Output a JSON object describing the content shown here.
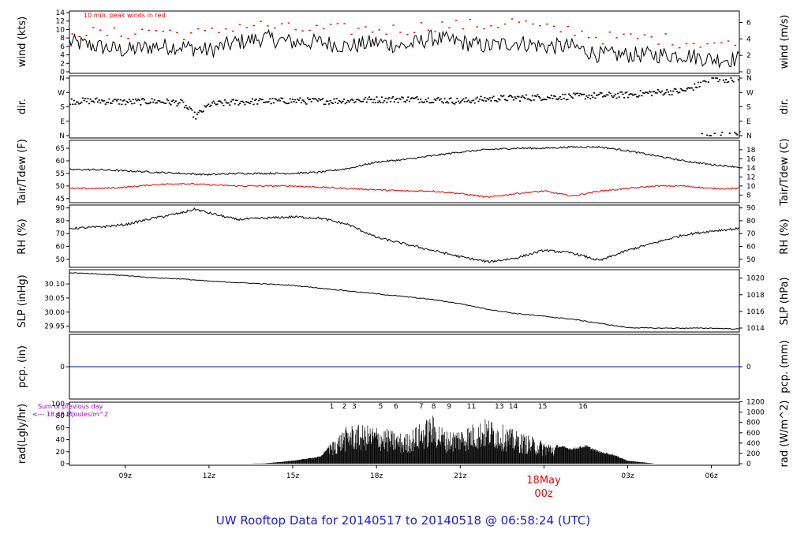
{
  "chart_data": {
    "title": "UW Rooftop Data for 20140517  to  20140518 @ 06:58:24  (UTC)",
    "title_color": "#1a1ae6",
    "accent_red": "#ee0000",
    "annot_purple": "#9900cc",
    "x_axis": {
      "ticks": [
        {
          "t": 9,
          "label": "09z"
        },
        {
          "t": 12,
          "label": "12z"
        },
        {
          "t": 15,
          "label": "15z"
        },
        {
          "t": 18,
          "label": "18z"
        },
        {
          "t": 21,
          "label": "21z"
        },
        {
          "t": 27,
          "label": "03z"
        },
        {
          "t": 30,
          "label": "06z"
        }
      ],
      "range_hours": [
        7.0,
        31.0
      ],
      "day_marker": {
        "t": 24,
        "date": "18May",
        "time": "00z"
      }
    },
    "panels": [
      {
        "id": "wind",
        "type": "line",
        "ylabel_left": "wind (kts)",
        "ylabel_right": "wind (m/s)",
        "note": "10 min. peak winds in red",
        "ylim": [
          0,
          14
        ],
        "left_ticks": [
          "0",
          "2",
          "4",
          "6",
          "8",
          "10",
          "12",
          "14"
        ],
        "right_ticks": [
          {
            "v": 0,
            "label": "0"
          },
          {
            "v": 2,
            "label": "2"
          },
          {
            "v": 4,
            "label": "4"
          },
          {
            "v": 6,
            "label": "6"
          }
        ],
        "right_factor": 0.5144,
        "series": [
          {
            "name": "wind",
            "color": "#000000",
            "x": [
              7,
              8,
              9,
              10,
              11,
              12,
              13,
              14,
              15,
              16,
              17,
              18,
              19,
              20,
              21,
              22,
              23,
              24,
              25,
              26,
              27,
              28,
              29,
              30,
              31
            ],
            "y": [
              7,
              6,
              5,
              6,
              6,
              5,
              7,
              8,
              7,
              7,
              6,
              7,
              6,
              8,
              7,
              6,
              7,
              6,
              6,
              4,
              4,
              4,
              4,
              3,
              3
            ]
          },
          {
            "name": "10 min. peak",
            "color": "#ee0000",
            "x": [
              7,
              8,
              9,
              10,
              11,
              12,
              13,
              14,
              15,
              16,
              17,
              18,
              19,
              20,
              21,
              22,
              23,
              24,
              25,
              26,
              27,
              28,
              29,
              30,
              31
            ],
            "y": [
              10,
              9,
              9,
              10,
              9,
              9,
              11,
              11,
              10,
              10,
              10,
              10,
              10,
              11,
              11,
              11,
              12,
              10,
              10,
              8,
              8,
              8,
              7,
              7,
              6
            ]
          }
        ]
      },
      {
        "id": "dir",
        "type": "scatter",
        "ylabel_left": "dir.",
        "ylabel_right": "dir.",
        "ylim": [
          0,
          360
        ],
        "ticks": [
          "N",
          "E",
          "S",
          "W",
          "N"
        ],
        "series": [
          {
            "name": "wind direction (deg)",
            "x": [
              7,
              8,
              9,
              10,
              11,
              11.5,
              12,
              13,
              14,
              15,
              16,
              17,
              18,
              19,
              20,
              21,
              22,
              23,
              24,
              25,
              26,
              27,
              28,
              29,
              30,
              31
            ],
            "y": [
              215,
              218,
              210,
              215,
              205,
              120,
              195,
              210,
              215,
              218,
              215,
              220,
              225,
              228,
              225,
              215,
              230,
              235,
              240,
              245,
              250,
              255,
              270,
              280,
              350,
              355
            ]
          }
        ]
      },
      {
        "id": "temp",
        "type": "line",
        "ylabel_left": "Tair/Tdew (F)",
        "ylabel_right": "Tair/Tdew (C)",
        "ylim": [
          44,
          67.5
        ],
        "left_ticks": [
          "45",
          "50",
          "55",
          "60",
          "65"
        ],
        "right_ticks": [
          {
            "v": 8,
            "label": "8"
          },
          {
            "v": 10,
            "label": "10"
          },
          {
            "v": 12,
            "label": "12"
          },
          {
            "v": 14,
            "label": "14"
          },
          {
            "v": 16,
            "label": "16"
          },
          {
            "v": 18,
            "label": "18"
          }
        ],
        "series": [
          {
            "name": "Tair",
            "color": "#000000",
            "x": [
              7,
              8,
              9,
              10,
              11,
              12,
              13,
              14,
              15,
              16,
              17,
              18,
              19,
              20,
              21,
              22,
              23,
              24,
              25,
              26,
              27,
              28,
              29,
              30,
              31
            ],
            "y": [
              56.5,
              56.5,
              56,
              55.5,
              55,
              54.5,
              55,
              55,
              55,
              55.5,
              57,
              59.5,
              60.5,
              62,
              63.5,
              64.5,
              65,
              65,
              65.5,
              65.5,
              64,
              62,
              60,
              58.5,
              57.5
            ]
          },
          {
            "name": "Tdew",
            "color": "#ee0000",
            "x": [
              7,
              8,
              9,
              10,
              11,
              12,
              13,
              14,
              15,
              16,
              17,
              18,
              19,
              20,
              21,
              22,
              23,
              24,
              25,
              26,
              27,
              28,
              29,
              30,
              31
            ],
            "y": [
              49,
              49,
              49.5,
              50.5,
              51,
              50.5,
              50,
              50,
              50,
              49.5,
              49,
              48.5,
              48,
              48,
              47,
              45.5,
              47,
              48,
              46,
              48,
              49,
              50,
              50,
              49,
              49
            ]
          }
        ]
      },
      {
        "id": "rh",
        "type": "line",
        "ylabel_left": "RH (%)",
        "ylabel_right": "RH (%)",
        "ylim": [
          45,
          91
        ],
        "ticks": [
          "50",
          "60",
          "70",
          "80",
          "90"
        ],
        "series": [
          {
            "name": "RH",
            "color": "#000000",
            "x": [
              7,
              8,
              9,
              10,
              11,
              11.5,
              12,
              13,
              14,
              15,
              16,
              17,
              18,
              19,
              20,
              21,
              22,
              23,
              24,
              25,
              26,
              27,
              28,
              29,
              30,
              31
            ],
            "y": [
              74,
              75,
              77,
              82,
              86,
              89,
              86,
              81,
              82,
              83,
              82,
              77,
              67,
              62,
              57,
              52,
              48,
              51,
              57,
              55,
              49,
              57,
              63,
              69,
              72,
              74
            ]
          }
        ]
      },
      {
        "id": "slp",
        "type": "line",
        "ylabel_left": "SLP (inHg)",
        "ylabel_right": "SLP (hPa)",
        "ylim": [
          29.935,
          30.145
        ],
        "left_ticks": [
          "29.95",
          "30.00",
          "30.05",
          "30.10"
        ],
        "right_ticks": [
          {
            "v": 1014,
            "label": "1014"
          },
          {
            "v": 1016,
            "label": "1016"
          },
          {
            "v": 1018,
            "label": "1018"
          },
          {
            "v": 1020,
            "label": "1020"
          }
        ],
        "series": [
          {
            "name": "SLP",
            "color": "#000000",
            "x": [
              7,
              8,
              9,
              10,
              11,
              12,
              13,
              14,
              15,
              16,
              17,
              18,
              19,
              20,
              21,
              22,
              23,
              24,
              25,
              26,
              27,
              28,
              29,
              30,
              31
            ],
            "y": [
              30.14,
              30.135,
              30.13,
              30.122,
              30.118,
              30.11,
              30.105,
              30.1,
              30.095,
              30.085,
              30.075,
              30.065,
              30.055,
              30.045,
              30.03,
              30.01,
              29.995,
              29.985,
              29.975,
              29.96,
              29.945,
              29.943,
              29.943,
              29.943,
              29.94
            ]
          }
        ]
      },
      {
        "id": "pcp",
        "type": "line",
        "ylabel_left": "pcp. (in)",
        "ylabel_right": "pcp. (mm)",
        "ylim": [
          -1,
          1
        ],
        "left_ticks": [
          "0"
        ],
        "right_ticks": [
          {
            "v": 0,
            "label": "0"
          }
        ],
        "series": [
          {
            "name": "precip",
            "color": "#0000cc",
            "x": [
              7,
              31
            ],
            "y": [
              0,
              0
            ]
          }
        ]
      },
      {
        "id": "rad",
        "type": "area",
        "ylabel_left": "rad(Lgly/hr)",
        "ylabel_right": "rad (W/m^2)",
        "ylim": [
          0,
          100
        ],
        "left_ticks": [
          "0",
          "20",
          "40",
          "60",
          "80",
          "100"
        ],
        "right_ticks": [
          {
            "v": 0,
            "label": "0"
          },
          {
            "v": 200,
            "label": "200"
          },
          {
            "v": 400,
            "label": "400"
          },
          {
            "v": 600,
            "label": "600"
          },
          {
            "v": 800,
            "label": "800"
          },
          {
            "v": 1000,
            "label": "1000"
          },
          {
            "v": 1200,
            "label": "1200"
          }
        ],
        "right_factor": 11.63,
        "series": [
          {
            "name": "radiation",
            "color": "#000000",
            "x": [
              7,
              13,
              14,
              15,
              16,
              16.5,
              17,
              18,
              19,
              20,
              20.5,
              21,
              22,
              23,
              24,
              25,
              25.5,
              26,
              26.5,
              27,
              28,
              31
            ],
            "y": [
              0,
              0,
              0.5,
              5,
              12,
              40,
              60,
              58,
              45,
              75,
              50,
              55,
              70,
              50,
              35,
              25,
              30,
              20,
              15,
              5,
              0,
              0
            ]
          }
        ],
        "day_sum_label": "Sum of previous day",
        "day_sum_value": "<--- 18.48 MJoules/m^2",
        "cloud_markers": [
          "1",
          "2",
          "3",
          "5",
          "6",
          "7",
          "8",
          "9",
          "11",
          "13",
          "14",
          "15",
          "16"
        ]
      }
    ]
  }
}
